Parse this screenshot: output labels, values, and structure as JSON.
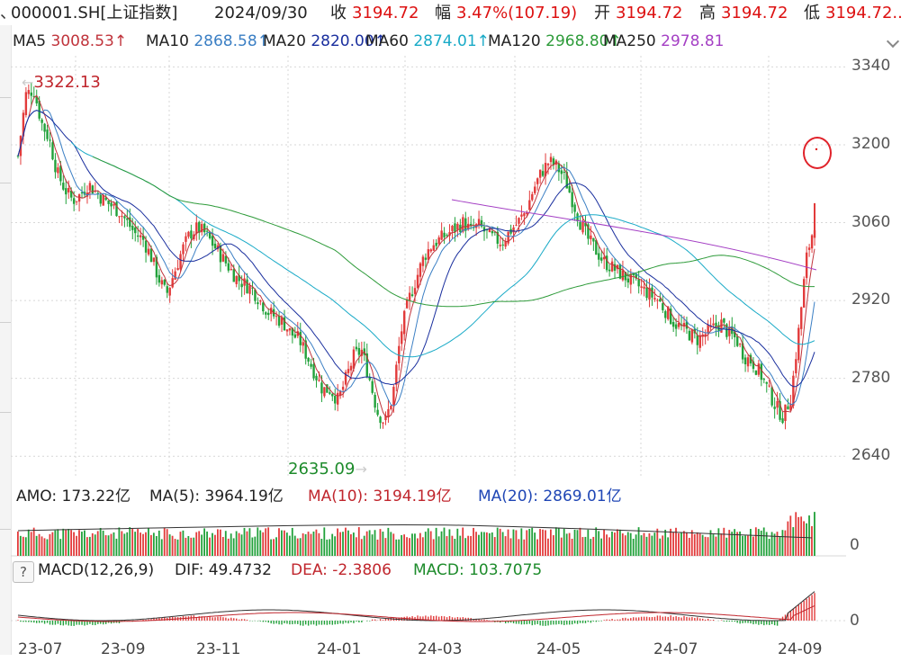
{
  "header": {
    "lead_glyph": "、",
    "code": "000001.SH[上证指数]",
    "date": "2024/09/30",
    "close_label": "收",
    "close_value": "3194.72",
    "change_label": "幅",
    "change_value": "3.47%(107.19)",
    "open_label": "开",
    "open_value": "3194.72",
    "high_label": "高",
    "high_value": "3194.72",
    "low_label": "低",
    "low_value": "3194.72.."
  },
  "ma_legend": [
    {
      "label": "MA5",
      "value": "3008.53↑",
      "color": "#c0343c"
    },
    {
      "label": "MA10",
      "value": "2868.58↑",
      "color": "#3b7fc4"
    },
    {
      "label": "MA20",
      "value": "2820.00↑",
      "color": "#1a2f9e"
    },
    {
      "label": "MA60",
      "value": "2874.01↑",
      "color": "#19aac7"
    },
    {
      "label": "MA120",
      "value": "2968.80↑",
      "color": "#2e9b3a"
    },
    {
      "label": "MA250",
      "value": "2978.81",
      "color": "#a43fc4"
    }
  ],
  "price_axis": [
    "3340",
    "3200",
    "3060",
    "2920",
    "2780",
    "2640"
  ],
  "annotations": {
    "high": "3322.13",
    "low": "2635.09"
  },
  "amo": {
    "label": "AMO: 173.22亿",
    "ma5": "MA(5): 3964.19亿",
    "ma10": "MA(10): 3194.19亿",
    "ma20": "MA(20): 2869.01亿",
    "zero": "0"
  },
  "macd": {
    "help": "?",
    "label": "MACD(12,26,9)",
    "dif": "DIF: 49.4732",
    "dea": "DEA: -2.3806",
    "macd": "MACD: 103.7075",
    "zero": "0"
  },
  "time_axis": [
    "23-07",
    "23-09",
    "23-11",
    "24-01",
    "24-03",
    "24-05",
    "24-07",
    "24-09"
  ],
  "colors": {
    "up": "#e23b3b",
    "down": "#21a13a",
    "grid": "#d7d7d7",
    "text": "#333333"
  },
  "chart_data": {
    "type": "candlestick",
    "ylim": [
      2600,
      3360
    ],
    "high_marker": "3322.13",
    "low_marker": "2635.09",
    "close_curve": [
      3180,
      3290,
      3300,
      3240,
      3210,
      3150,
      3120,
      3100,
      3110,
      3130,
      3115,
      3100,
      3090,
      3080,
      3060,
      3040,
      3030,
      3000,
      2960,
      2930,
      2970,
      3010,
      3040,
      3050,
      3040,
      3020,
      3000,
      2980,
      2960,
      2950,
      2940,
      2920,
      2900,
      2890,
      2880,
      2860,
      2850,
      2820,
      2790,
      2760,
      2760,
      2740,
      2780,
      2820,
      2830,
      2780,
      2720,
      2700,
      2750,
      2860,
      2920,
      2960,
      3000,
      3020,
      3030,
      3040,
      3050,
      3060,
      3045,
      3055,
      3040,
      3030,
      3025,
      3045,
      3060,
      3080,
      3120,
      3150,
      3170,
      3160,
      3140,
      3100,
      3060,
      3030,
      3010,
      2990,
      2980,
      2970,
      2960,
      2950,
      2940,
      2930,
      2920,
      2900,
      2880,
      2870,
      2860,
      2850,
      2860,
      2870,
      2880,
      2860,
      2850,
      2820,
      2810,
      2790,
      2760,
      2730,
      2710,
      2750,
      2870,
      3000,
      3060
    ],
    "max_curve_approx": [
      3340,
      3320,
      3290,
      3260,
      3220,
      3180,
      3150,
      3140,
      3130,
      3130,
      3120,
      3110,
      3100,
      3090,
      3080,
      3060,
      3050,
      3030,
      3010,
      2990,
      2990,
      2990,
      3000,
      3000,
      3000,
      2990,
      2980,
      2970,
      2960,
      2950,
      2940,
      2930,
      2910,
      2900,
      2890,
      2870,
      2860,
      2840,
      2810,
      2800,
      2790,
      2780,
      2790,
      2810,
      2830,
      2830,
      2810,
      2800,
      2810,
      2860,
      2920,
      2960,
      2990,
      3010,
      3020,
      3030,
      3040,
      3050,
      3050,
      3050,
      3050,
      3045,
      3040,
      3045,
      3060,
      3080,
      3110,
      3140,
      3150,
      3150,
      3140,
      3120,
      3100,
      3070,
      3050,
      3030,
      3010,
      3000,
      2990,
      2980,
      2970,
      2960,
      2950,
      2940,
      2920,
      2900,
      2890,
      2880,
      2880,
      2880,
      2880,
      2870,
      2860,
      2840,
      2830,
      2810,
      2790,
      2770,
      2760,
      2790,
      2860,
      2980,
      3060
    ]
  }
}
